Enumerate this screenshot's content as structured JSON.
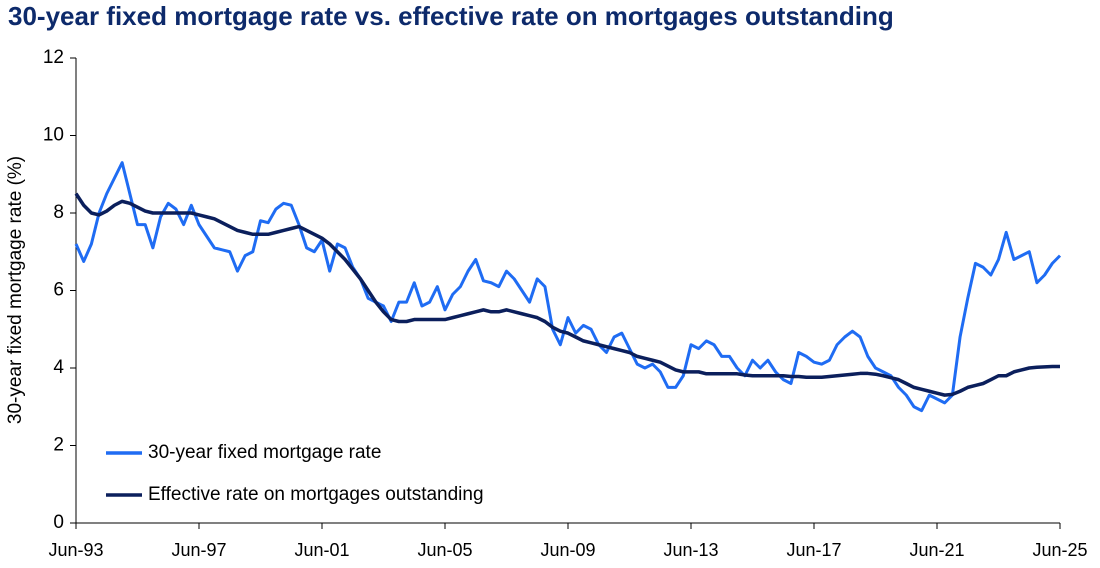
{
  "chart_data": {
    "type": "line",
    "title": "30-year fixed mortgage rate vs. effective rate on mortgages outstanding",
    "y_label": "30-year fixed mortgage rate (%)",
    "categories": [
      "Jun-93",
      null,
      null,
      null,
      null,
      null,
      null,
      null,
      null,
      null,
      null,
      null,
      null,
      null,
      null,
      null,
      "Jun-97",
      null,
      null,
      null,
      null,
      null,
      null,
      null,
      null,
      null,
      null,
      null,
      null,
      null,
      null,
      null,
      "Jun-01",
      null,
      null,
      null,
      null,
      null,
      null,
      null,
      null,
      null,
      null,
      null,
      null,
      null,
      null,
      null,
      "Jun-05",
      null,
      null,
      null,
      null,
      null,
      null,
      null,
      null,
      null,
      null,
      null,
      null,
      null,
      null,
      null,
      "Jun-09",
      null,
      null,
      null,
      null,
      null,
      null,
      null,
      null,
      null,
      null,
      null,
      null,
      null,
      null,
      null,
      "Jun-13",
      null,
      null,
      null,
      null,
      null,
      null,
      null,
      null,
      null,
      null,
      null,
      null,
      null,
      null,
      null,
      "Jun-17",
      null,
      null,
      null,
      null,
      null,
      null,
      null,
      null,
      null,
      null,
      null,
      null,
      null,
      null,
      null,
      "Jun-21",
      null,
      null,
      null,
      null,
      null,
      null,
      null,
      null,
      null,
      null,
      null,
      null,
      null,
      null,
      null,
      "Jun-25"
    ],
    "series": [
      {
        "name": "30-year fixed mortgage rate",
        "color": "#1f6cf3",
        "values": [
          7.2,
          6.75,
          7.2,
          8.0,
          8.5,
          8.9,
          9.3,
          8.5,
          7.7,
          7.7,
          7.1,
          7.9,
          8.25,
          8.1,
          7.7,
          8.2,
          7.7,
          7.4,
          7.1,
          7.05,
          7.0,
          6.5,
          6.9,
          7.0,
          7.8,
          7.75,
          8.1,
          8.25,
          8.2,
          7.7,
          7.1,
          7.0,
          7.3,
          6.5,
          7.2,
          7.1,
          6.6,
          6.3,
          5.8,
          5.7,
          5.6,
          5.2,
          5.7,
          5.7,
          6.2,
          5.6,
          5.7,
          6.1,
          5.5,
          5.9,
          6.1,
          6.5,
          6.8,
          6.25,
          6.2,
          6.1,
          6.5,
          6.3,
          6.0,
          5.7,
          6.3,
          6.1,
          5.0,
          4.6,
          5.3,
          4.9,
          5.1,
          5.0,
          4.6,
          4.4,
          4.8,
          4.9,
          4.5,
          4.1,
          4.0,
          4.1,
          3.9,
          3.5,
          3.5,
          3.8,
          4.6,
          4.5,
          4.7,
          4.6,
          4.3,
          4.3,
          4.0,
          3.8,
          4.2,
          4.0,
          4.2,
          3.9,
          3.7,
          3.6,
          4.4,
          4.3,
          4.15,
          4.1,
          4.2,
          4.6,
          4.8,
          4.95,
          4.8,
          4.3,
          4.0,
          3.9,
          3.8,
          3.5,
          3.3,
          3.0,
          2.9,
          3.3,
          3.2,
          3.1,
          3.3,
          4.8,
          5.8,
          6.7,
          6.6,
          6.4,
          6.8,
          7.5,
          6.8,
          6.9,
          7.0,
          6.2,
          6.4,
          6.7,
          6.9
        ]
      },
      {
        "name": "Effective rate on mortgages outstanding",
        "color": "#0b1f5c",
        "values": [
          8.5,
          8.2,
          8.0,
          7.95,
          8.05,
          8.2,
          8.3,
          8.25,
          8.15,
          8.05,
          8.0,
          8.0,
          8.0,
          8.0,
          8.0,
          8.0,
          7.95,
          7.9,
          7.85,
          7.75,
          7.65,
          7.55,
          7.5,
          7.45,
          7.45,
          7.45,
          7.5,
          7.55,
          7.6,
          7.65,
          7.55,
          7.45,
          7.35,
          7.2,
          7.0,
          6.8,
          6.55,
          6.3,
          6.0,
          5.7,
          5.45,
          5.25,
          5.2,
          5.2,
          5.25,
          5.25,
          5.25,
          5.25,
          5.25,
          5.3,
          5.35,
          5.4,
          5.45,
          5.5,
          5.45,
          5.45,
          5.5,
          5.45,
          5.4,
          5.35,
          5.3,
          5.2,
          5.05,
          4.95,
          4.9,
          4.8,
          4.7,
          4.65,
          4.6,
          4.55,
          4.5,
          4.45,
          4.4,
          4.3,
          4.25,
          4.2,
          4.15,
          4.05,
          3.95,
          3.9,
          3.9,
          3.9,
          3.85,
          3.85,
          3.85,
          3.85,
          3.85,
          3.82,
          3.8,
          3.8,
          3.8,
          3.8,
          3.8,
          3.78,
          3.78,
          3.76,
          3.76,
          3.76,
          3.78,
          3.8,
          3.82,
          3.84,
          3.86,
          3.86,
          3.84,
          3.8,
          3.75,
          3.7,
          3.6,
          3.5,
          3.45,
          3.4,
          3.35,
          3.3,
          3.32,
          3.4,
          3.5,
          3.55,
          3.6,
          3.7,
          3.8,
          3.8,
          3.9,
          3.95,
          4.0,
          4.02,
          4.03,
          4.04,
          4.04
        ]
      }
    ],
    "ylim": [
      0,
      12
    ],
    "yticks": [
      0,
      2,
      4,
      6,
      8,
      10,
      12
    ],
    "grid": false,
    "legend": "lower left"
  }
}
